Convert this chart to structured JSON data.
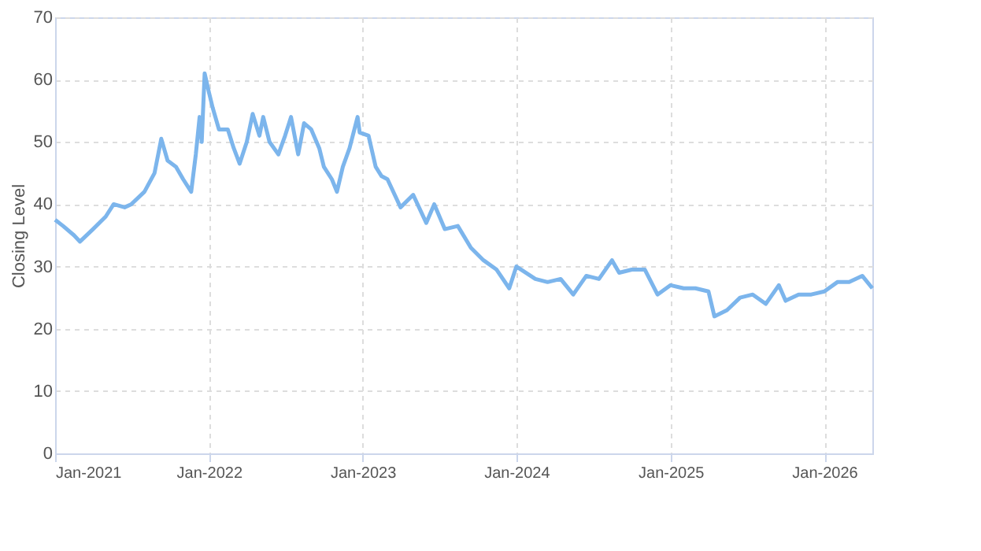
{
  "chart_data": {
    "type": "line",
    "ylabel": "Closing Level",
    "x": [
      "2021-01-01",
      "2021-01-20",
      "2021-02-15",
      "2021-03-01",
      "2021-04-01",
      "2021-05-01",
      "2021-05-20",
      "2021-06-15",
      "2021-07-01",
      "2021-08-01",
      "2021-08-25",
      "2021-09-10",
      "2021-09-25",
      "2021-10-15",
      "2021-11-01",
      "2021-11-20",
      "2021-12-01",
      "2021-12-10",
      "2021-12-15",
      "2021-12-22",
      "2022-01-01",
      "2022-01-10",
      "2022-01-25",
      "2022-02-15",
      "2022-03-01",
      "2022-03-15",
      "2022-04-01",
      "2022-04-15",
      "2022-05-01",
      "2022-05-10",
      "2022-05-25",
      "2022-06-15",
      "2022-07-01",
      "2022-07-15",
      "2022-08-01",
      "2022-08-15",
      "2022-09-01",
      "2022-09-20",
      "2022-10-01",
      "2022-10-20",
      "2022-11-01",
      "2022-11-15",
      "2022-12-01",
      "2022-12-20",
      "2022-12-25",
      "2023-01-15",
      "2023-02-01",
      "2023-02-15",
      "2023-03-01",
      "2023-04-01",
      "2023-05-01",
      "2023-06-01",
      "2023-06-20",
      "2023-07-15",
      "2023-08-15",
      "2023-09-15",
      "2023-10-15",
      "2023-11-15",
      "2023-12-15",
      "2024-01-01",
      "2024-02-15",
      "2024-03-15",
      "2024-04-15",
      "2024-05-15",
      "2024-06-15",
      "2024-07-15",
      "2024-08-15",
      "2024-09-01",
      "2024-10-01",
      "2024-11-01",
      "2024-12-01",
      "2025-01-01",
      "2025-02-01",
      "2025-03-01",
      "2025-04-01",
      "2025-04-15",
      "2025-05-15",
      "2025-06-15",
      "2025-07-15",
      "2025-08-15",
      "2025-09-15",
      "2025-10-01",
      "2025-11-01",
      "2025-12-01",
      "2026-01-01",
      "2026-02-01",
      "2026-03-01",
      "2026-04-01",
      "2026-04-25"
    ],
    "series": [
      {
        "color": "#7cb5ec",
        "values": [
          37.5,
          36.5,
          35,
          34,
          36,
          38,
          40,
          39.5,
          40,
          42,
          45,
          50.5,
          47,
          46,
          44,
          42,
          48,
          54,
          50,
          61,
          58,
          55.5,
          52,
          52,
          49,
          46.5,
          50,
          54.5,
          51,
          54,
          50,
          48,
          51,
          54,
          48,
          53,
          52,
          49,
          46,
          44,
          42,
          46,
          49,
          54,
          51.5,
          51,
          46,
          44.5,
          44,
          39.5,
          41.5,
          37,
          40,
          36,
          36.5,
          33,
          31,
          29.5,
          26.5,
          30,
          28,
          27.5,
          28,
          25.5,
          28.5,
          28,
          31,
          29,
          29.5,
          29.5,
          25.5,
          27,
          26.5,
          26.5,
          26,
          22,
          23,
          25,
          25.5,
          24,
          27,
          24.5,
          25.5,
          25.5,
          26,
          27.5,
          27.5,
          28.5,
          26.5
        ]
      }
    ],
    "xlim": [
      "2021-01-01",
      "2026-04-25"
    ],
    "xticks": [
      {
        "value": "2021-01-01",
        "label": "Jan-2021"
      },
      {
        "value": "2022-01-01",
        "label": "Jan-2022"
      },
      {
        "value": "2023-01-01",
        "label": "Jan-2023"
      },
      {
        "value": "2024-01-01",
        "label": "Jan-2024"
      },
      {
        "value": "2025-01-01",
        "label": "Jan-2025"
      },
      {
        "value": "2026-01-01",
        "label": "Jan-2026"
      }
    ],
    "ylim": [
      0,
      70
    ],
    "yticks": [
      0,
      10,
      20,
      30,
      40,
      50,
      60,
      70
    ],
    "grid": true,
    "line_style": "solid"
  }
}
